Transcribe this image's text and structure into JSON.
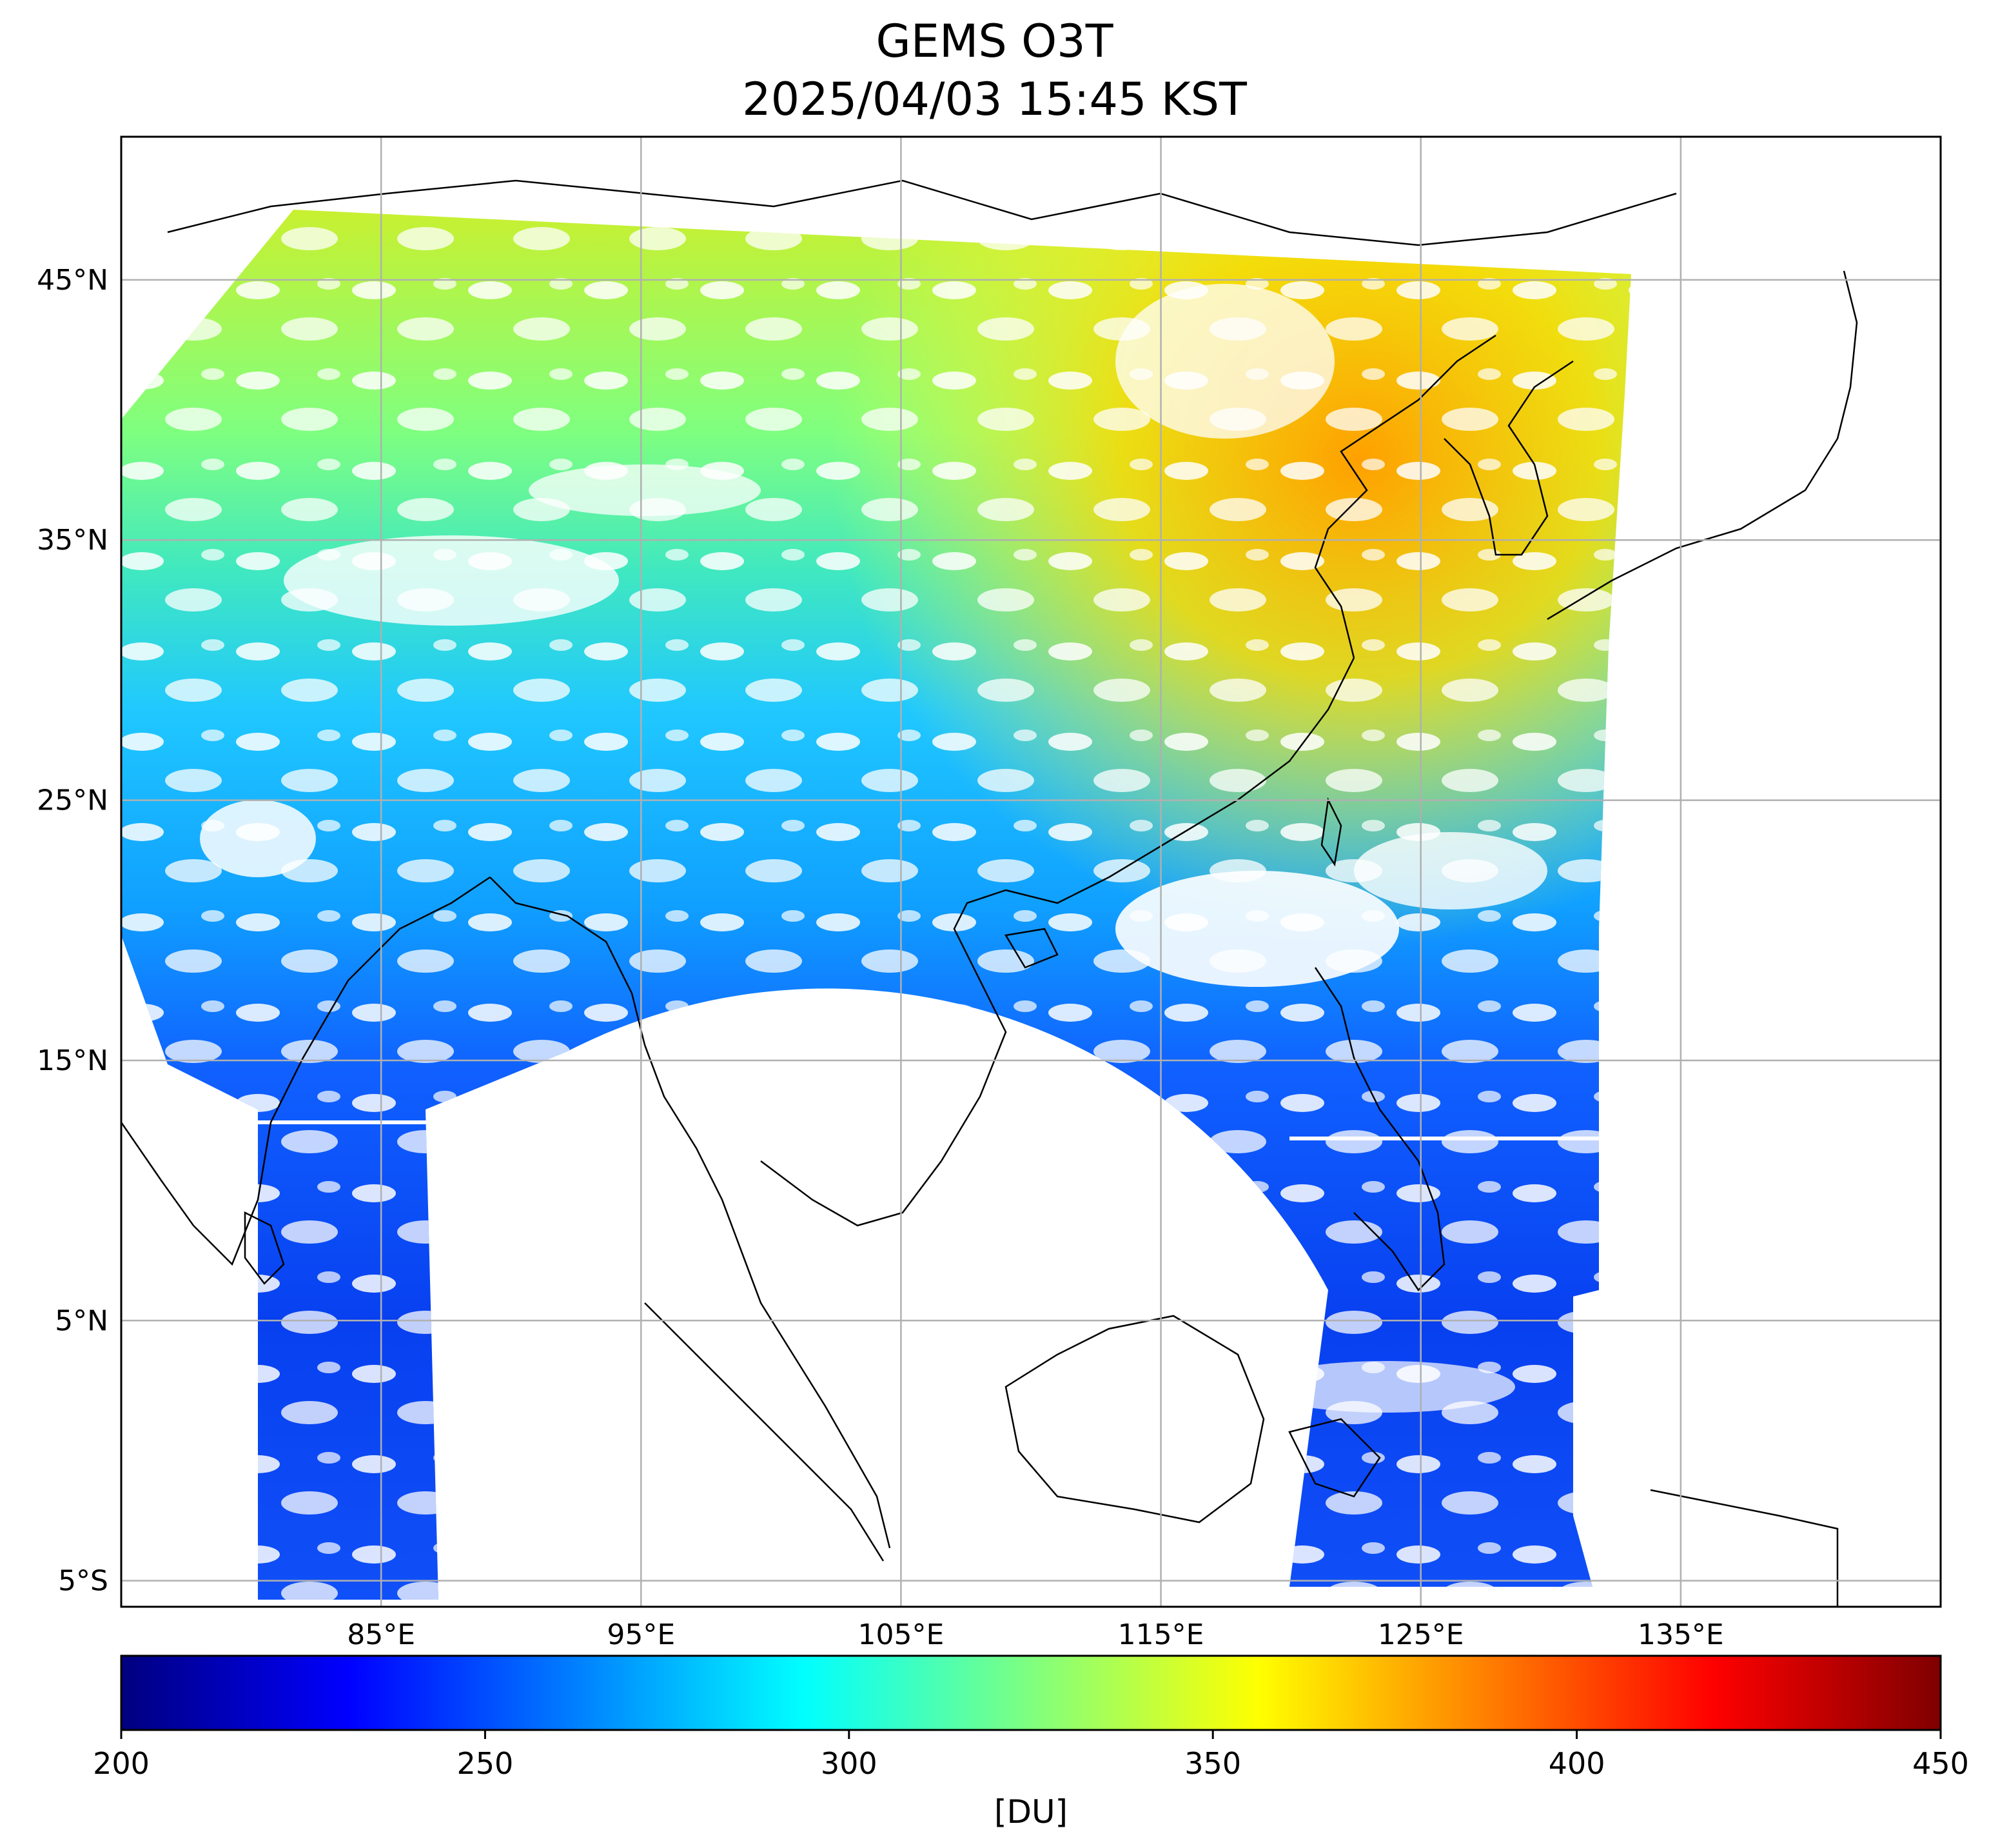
{
  "title": "GEMS O3T",
  "subtitle": "2025/04/03 15:45 KST",
  "map": {
    "lon_range": [
      75,
      145
    ],
    "lat_range": [
      -6,
      50.5
    ],
    "lat_ticks": [
      {
        "value": 45,
        "label": "45°N"
      },
      {
        "value": 35,
        "label": "35°N"
      },
      {
        "value": 25,
        "label": "25°N"
      },
      {
        "value": 15,
        "label": "15°N"
      },
      {
        "value": 5,
        "label": "5°N"
      },
      {
        "value": -5,
        "label": "5°S"
      }
    ],
    "lon_ticks": [
      {
        "value": 85,
        "label": "85°E"
      },
      {
        "value": 95,
        "label": "95°E"
      },
      {
        "value": 105,
        "label": "105°E"
      },
      {
        "value": 115,
        "label": "115°E"
      },
      {
        "value": 125,
        "label": "125°E"
      },
      {
        "value": 135,
        "label": "135°E"
      }
    ],
    "grid": true
  },
  "colorbar": {
    "min": 200,
    "max": 450,
    "ticks": [
      "200",
      "250",
      "300",
      "350",
      "400",
      "450"
    ],
    "unit": "[DU]",
    "colormap": "jet",
    "colors": [
      "#00007f",
      "#0000ff",
      "#007fff",
      "#00ffff",
      "#7fff7f",
      "#ffff00",
      "#ff7f00",
      "#ff0000",
      "#7f0000"
    ]
  },
  "colors": {
    "coastline": "#000000",
    "gridline": "#b0b0b0",
    "no_data": "#ffffff"
  }
}
